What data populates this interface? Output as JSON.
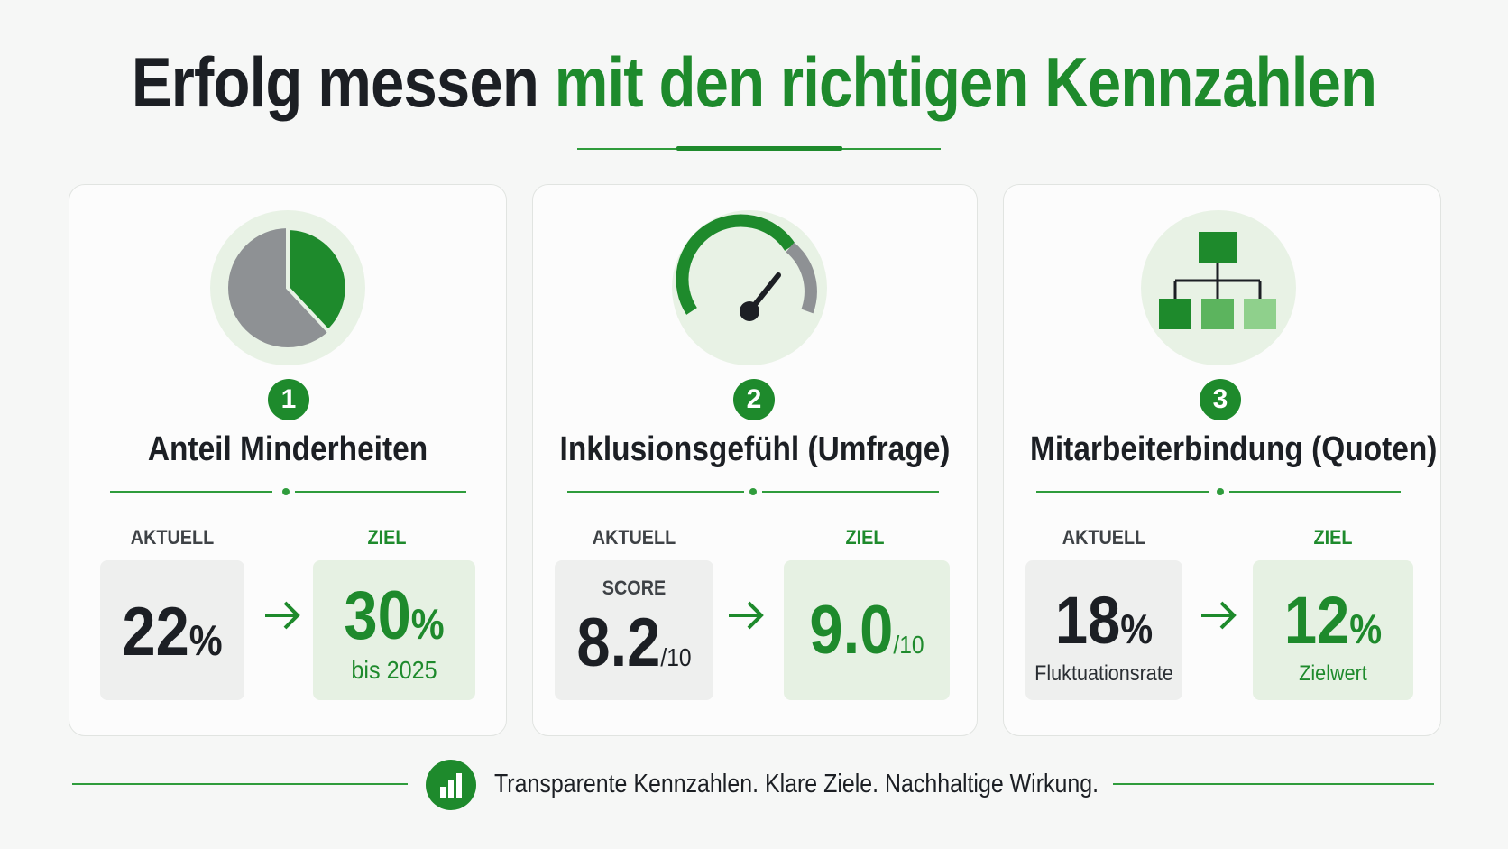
{
  "title": {
    "part1": "Erfolg messen",
    "part2": "mit den richtigen Kennzahlen"
  },
  "cards": [
    {
      "number": "1",
      "icon": "pie-chart-icon",
      "title": "Anteil Minderheiten",
      "current_label": "AKTUELL",
      "target_label": "ZIEL",
      "current_value": "22",
      "current_unit": "%",
      "target_value": "30",
      "target_unit": "%",
      "target_sub": "bis 2025"
    },
    {
      "number": "2",
      "icon": "gauge-icon",
      "title": "Inklusionsgefühl (Umfrage)",
      "current_label": "AKTUELL",
      "target_label": "ZIEL",
      "current_caption": "SCORE",
      "current_value": "8.2",
      "current_unit": "/10",
      "target_value": "9.0",
      "target_unit": "/10"
    },
    {
      "number": "3",
      "icon": "org-chart-icon",
      "title": "Mitarbeiterbindung (Quoten)",
      "current_label": "AKTUELL",
      "target_label": "ZIEL",
      "current_value": "18",
      "current_unit": "%",
      "current_sub": "Fluktuationsrate",
      "target_value": "12",
      "target_unit": "%",
      "target_sub": "Zielwert"
    }
  ],
  "footer": {
    "icon": "bar-chart-icon",
    "text": "Transparente Kennzahlen. Klare Ziele. Nachhaltige Wirkung."
  },
  "colors": {
    "accent": "#1e8a2c",
    "accent_light": "#e6f1e3",
    "grey_box": "#eeefee",
    "text_dark": "#1c1f24"
  }
}
